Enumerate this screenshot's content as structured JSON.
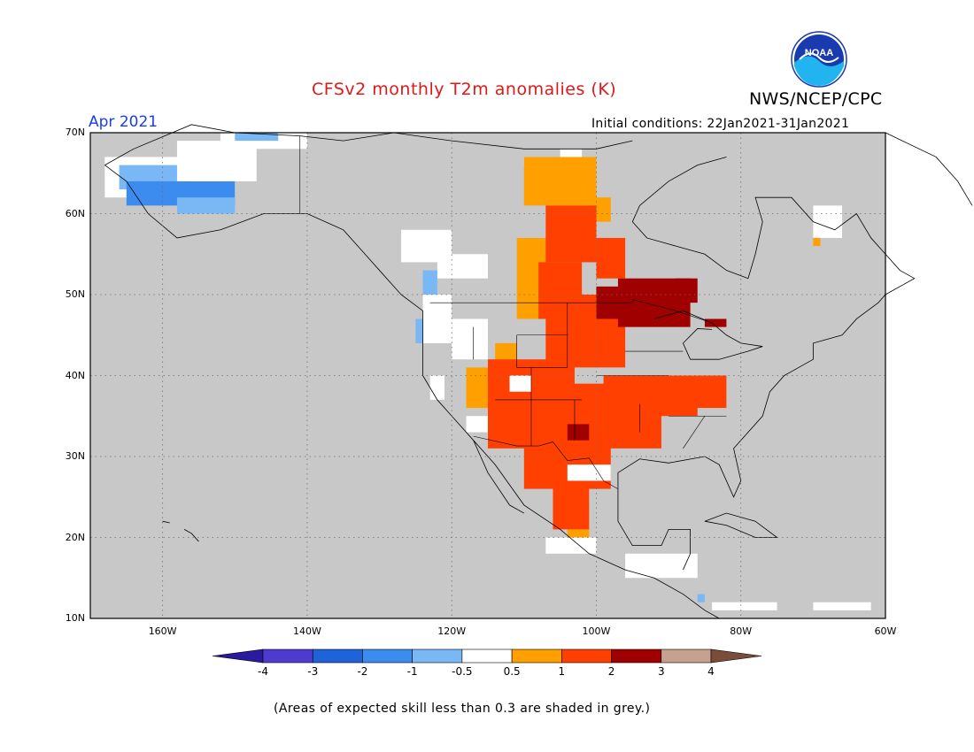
{
  "header": {
    "title": "CFSv2 monthly T2m anomalies (K)",
    "agency": "NWS/NCEP/CPC",
    "period": "Apr 2021",
    "initial_conditions": "Initial conditions: 22Jan2021-31Jan2021",
    "logo_text": "NOAA"
  },
  "map": {
    "lat_range": [
      10,
      70
    ],
    "lon_range": [
      -170,
      -60
    ],
    "lat_labels": [
      "70N",
      "60N",
      "50N",
      "40N",
      "30N",
      "20N",
      "10N"
    ],
    "lon_labels": [
      "160W",
      "140W",
      "120W",
      "100W",
      "80W",
      "60W"
    ],
    "colors": {
      "grey_low_skill": "#c8c8c8",
      "neutral": "#ffffff",
      "ocean_land_lines": "#000000",
      "grid": "#6e6e6e"
    }
  },
  "legend": {
    "ticks": [
      "-4",
      "-3",
      "-2",
      "-1",
      "-0.5",
      "0.5",
      "1",
      "2",
      "3",
      "4"
    ],
    "colors": [
      "#2a1aa0",
      "#4f3ad0",
      "#1f63d8",
      "#3c8cf0",
      "#7ab8f5",
      "#ffffff",
      "#ffa000",
      "#ff4000",
      "#a00000",
      "#c8a090",
      "#7a4d3a"
    ]
  },
  "footnote": "(Areas of expected skill less than 0.3 are shaded in grey.)"
}
